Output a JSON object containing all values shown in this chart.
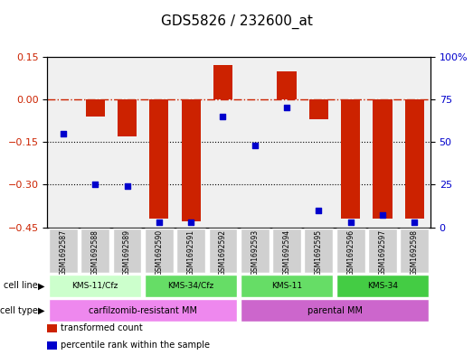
{
  "title": "GDS5826 / 232600_at",
  "samples": [
    "GSM1692587",
    "GSM1692588",
    "GSM1692589",
    "GSM1692590",
    "GSM1692591",
    "GSM1692592",
    "GSM1692593",
    "GSM1692594",
    "GSM1692595",
    "GSM1692596",
    "GSM1692597",
    "GSM1692598"
  ],
  "transformed_count": [
    0.0,
    -0.06,
    -0.13,
    -0.42,
    -0.43,
    0.12,
    0.0,
    0.1,
    -0.07,
    -0.42,
    -0.42,
    -0.42
  ],
  "percentile_rank": [
    55,
    25,
    24,
    3,
    3,
    65,
    48,
    70,
    10,
    3,
    7,
    3
  ],
  "ylim_left": [
    -0.45,
    0.15
  ],
  "ylim_right": [
    0,
    100
  ],
  "yticks_left": [
    0.15,
    0.0,
    -0.15,
    -0.3,
    -0.45
  ],
  "yticks_right": [
    100,
    75,
    50,
    25,
    0
  ],
  "hline_y": 0.0,
  "dotted_lines": [
    -0.15,
    -0.3
  ],
  "bar_color": "#cc2200",
  "dot_color": "#0000cc",
  "cell_line_groups": [
    {
      "label": "KMS-11/Cfz",
      "start": 0,
      "end": 3,
      "color": "#ccffcc"
    },
    {
      "label": "KMS-34/Cfz",
      "start": 3,
      "end": 6,
      "color": "#66dd66"
    },
    {
      "label": "KMS-11",
      "start": 6,
      "end": 9,
      "color": "#66dd66"
    },
    {
      "label": "KMS-34",
      "start": 9,
      "end": 12,
      "color": "#44cc44"
    }
  ],
  "cell_type_groups": [
    {
      "label": "carfilzomib-resistant MM",
      "start": 0,
      "end": 6,
      "color": "#ee88ee"
    },
    {
      "label": "parental MM",
      "start": 6,
      "end": 12,
      "color": "#cc66cc"
    }
  ],
  "cell_line_label": "cell line",
  "cell_type_label": "cell type",
  "legend_items": [
    {
      "label": "transformed count",
      "color": "#cc2200"
    },
    {
      "label": "percentile rank within the sample",
      "color": "#0000cc"
    }
  ],
  "bar_width": 0.6,
  "axis_bg": "#f0f0f0",
  "spine_color": "#000000"
}
